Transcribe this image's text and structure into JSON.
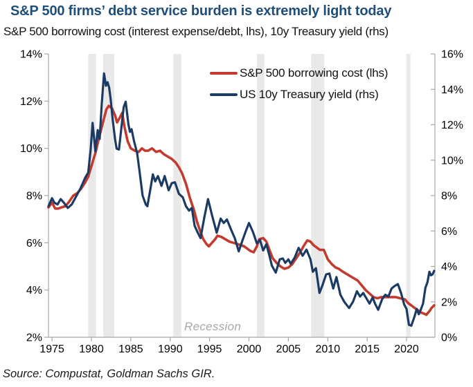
{
  "header": {
    "title": "S&P 500 firms’ debt service burden is extremely light today",
    "subtitle": "S&P 500 borrowing cost (interest expense/debt, lhs), 10y Treasury yield (rhs)"
  },
  "footer": {
    "source": "Source: Compustat, Goldman Sachs GIR."
  },
  "colors": {
    "title_blue": "#1F4E79",
    "borrowing_cost_red": "#C23B2E",
    "treasury_navy": "#1B3A64",
    "recession_band": "#E9E9E9",
    "axis_gray": "#A6A6A6",
    "recession_text_gray": "#A8A8A8",
    "tick_label": "#000000"
  },
  "legend": {
    "items": [
      {
        "label": "S&P 500 borrowing cost (lhs)",
        "color": "#C23B2E"
      },
      {
        "label": "US 10y Treasury yield (rhs)",
        "color": "#1B3A64"
      }
    ]
  },
  "plot": {
    "recession_label": "Recession"
  },
  "chart_data": {
    "type": "line",
    "title": "S&P 500 firms’ debt service burden is extremely light today",
    "subtitle": "S&P 500 borrowing cost (interest expense/debt, lhs), 10y Treasury yield (rhs)",
    "grid": false,
    "legend_position": "top-center-inside",
    "x_axis": {
      "min": 1974.55,
      "max": 2023.6,
      "ticks": [
        {
          "value": 1975,
          "label": "1975"
        },
        {
          "value": 1980,
          "label": "1980"
        },
        {
          "value": 1985,
          "label": "1985"
        },
        {
          "value": 1990,
          "label": "1990"
        },
        {
          "value": 1995,
          "label": "1995"
        },
        {
          "value": 2000,
          "label": "2000"
        },
        {
          "value": 2005,
          "label": "2005"
        },
        {
          "value": 2010,
          "label": "2010"
        },
        {
          "value": 2015,
          "label": "2015"
        },
        {
          "value": 2020,
          "label": "2020"
        }
      ]
    },
    "y_left": {
      "min": 2,
      "max": 14,
      "ticks": [
        {
          "value": 14,
          "label": "14%"
        },
        {
          "value": 12,
          "label": "12%"
        },
        {
          "value": 10,
          "label": "10%"
        },
        {
          "value": 8,
          "label": "8%"
        },
        {
          "value": 6,
          "label": "6%"
        },
        {
          "value": 4,
          "label": "4%"
        },
        {
          "value": 2,
          "label": "2%"
        }
      ]
    },
    "y_right": {
      "min": 0,
      "max": 16,
      "ticks": [
        {
          "value": 16,
          "label": "16%"
        },
        {
          "value": 14,
          "label": "14%"
        },
        {
          "value": 12,
          "label": "12%"
        },
        {
          "value": 10,
          "label": "10%"
        },
        {
          "value": 8,
          "label": "8%"
        },
        {
          "value": 6,
          "label": "6%"
        },
        {
          "value": 4,
          "label": "4%"
        },
        {
          "value": 2,
          "label": "2%"
        },
        {
          "value": 0,
          "label": "0%"
        }
      ]
    },
    "recessions": [
      [
        1979.6,
        1980.6
      ],
      [
        1981.5,
        1982.9
      ],
      [
        1990.4,
        1991.4
      ],
      [
        2001.0,
        2001.95
      ],
      [
        2007.9,
        2009.55
      ],
      [
        2019.95,
        2020.5
      ]
    ],
    "annotation": "Recession",
    "series": [
      {
        "name": "S&P 500 borrowing cost (lhs)",
        "axis": "left",
        "color": "#C23B2E",
        "stroke_width": 3.6,
        "points": [
          [
            1974.55,
            7.5
          ],
          [
            1975,
            7.7
          ],
          [
            1975.4,
            7.45
          ],
          [
            1975.8,
            7.45
          ],
          [
            1976.2,
            7.5
          ],
          [
            1976.7,
            7.55
          ],
          [
            1977.2,
            7.75
          ],
          [
            1977.7,
            8.0
          ],
          [
            1978.2,
            8.1
          ],
          [
            1978.7,
            8.3
          ],
          [
            1979.2,
            8.55
          ],
          [
            1979.6,
            8.8
          ],
          [
            1980,
            9.25
          ],
          [
            1980.5,
            9.8
          ],
          [
            1981,
            10.5
          ],
          [
            1981.5,
            11.15
          ],
          [
            1981.9,
            11.65
          ],
          [
            1982.2,
            11.8
          ],
          [
            1982.6,
            11.7
          ],
          [
            1983,
            11.4
          ],
          [
            1983.25,
            11.1
          ],
          [
            1983.6,
            11.3
          ],
          [
            1983.9,
            11.5
          ],
          [
            1984.2,
            10.9
          ],
          [
            1984.6,
            10.3
          ],
          [
            1985,
            10.0
          ],
          [
            1985.5,
            9.9
          ],
          [
            1986,
            9.85
          ],
          [
            1986.4,
            10.0
          ],
          [
            1986.8,
            9.9
          ],
          [
            1987.2,
            9.9
          ],
          [
            1987.7,
            10.0
          ],
          [
            1988.2,
            9.85
          ],
          [
            1988.7,
            9.9
          ],
          [
            1989.2,
            9.75
          ],
          [
            1989.7,
            9.65
          ],
          [
            1990.2,
            9.55
          ],
          [
            1990.7,
            9.4
          ],
          [
            1991.1,
            9.2
          ],
          [
            1991.5,
            8.95
          ],
          [
            1992,
            8.5
          ],
          [
            1992.5,
            7.9
          ],
          [
            1993,
            7.4
          ],
          [
            1993.4,
            6.9
          ],
          [
            1993.8,
            6.5
          ],
          [
            1994.2,
            6.15
          ],
          [
            1994.6,
            5.95
          ],
          [
            1994.9,
            5.85
          ],
          [
            1995.3,
            6.0
          ],
          [
            1995.7,
            6.15
          ],
          [
            1996,
            6.3
          ],
          [
            1996.5,
            6.25
          ],
          [
            1997,
            6.15
          ],
          [
            1997.5,
            6.05
          ],
          [
            1998,
            6.0
          ],
          [
            1998.5,
            5.95
          ],
          [
            1999,
            5.9
          ],
          [
            1999.4,
            5.85
          ],
          [
            1999.8,
            5.75
          ],
          [
            2000.2,
            5.65
          ],
          [
            2000.6,
            5.6
          ],
          [
            2001,
            5.85
          ],
          [
            2001.3,
            6.15
          ],
          [
            2001.8,
            6.2
          ],
          [
            2002.2,
            6.05
          ],
          [
            2002.6,
            5.7
          ],
          [
            2003,
            5.35
          ],
          [
            2003.5,
            5.15
          ],
          [
            2004,
            5.0
          ],
          [
            2004.5,
            4.9
          ],
          [
            2005,
            4.95
          ],
          [
            2005.5,
            5.1
          ],
          [
            2006,
            5.35
          ],
          [
            2006.5,
            5.6
          ],
          [
            2007,
            5.9
          ],
          [
            2007.4,
            6.1
          ],
          [
            2007.8,
            6.05
          ],
          [
            2008.2,
            5.9
          ],
          [
            2008.6,
            5.8
          ],
          [
            2009,
            5.7
          ],
          [
            2009.5,
            5.7
          ],
          [
            2010,
            5.3
          ],
          [
            2010.5,
            5.1
          ],
          [
            2011,
            4.95
          ],
          [
            2011.4,
            4.9
          ],
          [
            2011.8,
            4.8
          ],
          [
            2012.3,
            4.7
          ],
          [
            2012.8,
            4.6
          ],
          [
            2013.3,
            4.5
          ],
          [
            2013.8,
            4.4
          ],
          [
            2014.3,
            4.2
          ],
          [
            2014.8,
            4.0
          ],
          [
            2015.3,
            3.85
          ],
          [
            2015.8,
            3.7
          ],
          [
            2016.3,
            3.65
          ],
          [
            2016.8,
            3.7
          ],
          [
            2017.4,
            3.7
          ],
          [
            2018,
            3.7
          ],
          [
            2018.6,
            3.7
          ],
          [
            2019.2,
            3.65
          ],
          [
            2019.8,
            3.6
          ],
          [
            2020.2,
            3.45
          ],
          [
            2020.6,
            3.35
          ],
          [
            2021,
            3.25
          ],
          [
            2021.4,
            3.15
          ],
          [
            2021.8,
            3.05
          ],
          [
            2022.2,
            3.0
          ],
          [
            2022.5,
            2.95
          ],
          [
            2022.9,
            3.1
          ],
          [
            2023.2,
            3.25
          ],
          [
            2023.5,
            3.35
          ]
        ]
      },
      {
        "name": "US 10y Treasury yield (rhs)",
        "axis": "right",
        "color": "#1B3A64",
        "stroke_width": 3.2,
        "points": [
          [
            1974.55,
            7.4
          ],
          [
            1975,
            7.85
          ],
          [
            1975.3,
            7.6
          ],
          [
            1975.7,
            7.5
          ],
          [
            1976.1,
            7.8
          ],
          [
            1976.5,
            7.6
          ],
          [
            1977,
            7.3
          ],
          [
            1977.5,
            7.5
          ],
          [
            1978,
            7.9
          ],
          [
            1978.6,
            8.4
          ],
          [
            1979.2,
            9.0
          ],
          [
            1979.6,
            9.3
          ],
          [
            1979.9,
            10.6
          ],
          [
            1980.15,
            12.1
          ],
          [
            1980.5,
            10.5
          ],
          [
            1980.8,
            11.7
          ],
          [
            1981.05,
            11.2
          ],
          [
            1981.3,
            13.1
          ],
          [
            1981.6,
            14.9
          ],
          [
            1981.85,
            14.2
          ],
          [
            1982.05,
            14.4
          ],
          [
            1982.25,
            14.1
          ],
          [
            1982.45,
            13.4
          ],
          [
            1982.7,
            12.3
          ],
          [
            1983,
            11.2
          ],
          [
            1983.2,
            10.65
          ],
          [
            1983.5,
            10.6
          ],
          [
            1983.8,
            11.8
          ],
          [
            1984.1,
            13.0
          ],
          [
            1984.35,
            13.3
          ],
          [
            1984.7,
            12.0
          ],
          [
            1984.9,
            11.6
          ],
          [
            1985.1,
            11.75
          ],
          [
            1985.4,
            11.1
          ],
          [
            1985.8,
            10.4
          ],
          [
            1986.1,
            9.4
          ],
          [
            1986.5,
            8.0
          ],
          [
            1986.9,
            7.5
          ],
          [
            1987.1,
            7.4
          ],
          [
            1987.5,
            8.4
          ],
          [
            1987.8,
            9.2
          ],
          [
            1988.1,
            8.8
          ],
          [
            1988.45,
            9.1
          ],
          [
            1988.9,
            8.55
          ],
          [
            1989.3,
            9.1
          ],
          [
            1989.8,
            8.3
          ],
          [
            1990.2,
            8.7
          ],
          [
            1990.6,
            8.75
          ],
          [
            1991.1,
            8.1
          ],
          [
            1991.6,
            7.9
          ],
          [
            1992,
            7.4
          ],
          [
            1992.4,
            7.15
          ],
          [
            1992.75,
            7.3
          ],
          [
            1993.1,
            6.3
          ],
          [
            1993.5,
            5.9
          ],
          [
            1993.85,
            5.6
          ],
          [
            1994.3,
            6.7
          ],
          [
            1994.8,
            7.8
          ],
          [
            1995.3,
            6.9
          ],
          [
            1995.9,
            5.9
          ],
          [
            1996.4,
            6.7
          ],
          [
            1996.8,
            6.45
          ],
          [
            1997.2,
            6.65
          ],
          [
            1997.7,
            6.1
          ],
          [
            1998.2,
            5.6
          ],
          [
            1998.7,
            4.85
          ],
          [
            1999.2,
            5.5
          ],
          [
            1999.6,
            6.0
          ],
          [
            2000,
            6.45
          ],
          [
            2000.5,
            5.95
          ],
          [
            2001,
            5.3
          ],
          [
            2001.4,
            5.5
          ],
          [
            2001.8,
            4.9
          ],
          [
            2002.2,
            5.25
          ],
          [
            2002.6,
            4.6
          ],
          [
            2002.9,
            4.05
          ],
          [
            2003.4,
            3.65
          ],
          [
            2003.9,
            4.4
          ],
          [
            2004.3,
            4.45
          ],
          [
            2004.6,
            4.2
          ],
          [
            2005,
            4.4
          ],
          [
            2005.3,
            4.15
          ],
          [
            2005.8,
            4.5
          ],
          [
            2006.3,
            5.05
          ],
          [
            2006.8,
            4.6
          ],
          [
            2007.3,
            4.95
          ],
          [
            2007.8,
            4.4
          ],
          [
            2008.1,
            3.7
          ],
          [
            2008.5,
            3.9
          ],
          [
            2008.95,
            2.5
          ],
          [
            2009.3,
            2.9
          ],
          [
            2009.8,
            3.55
          ],
          [
            2010.2,
            3.6
          ],
          [
            2010.7,
            2.75
          ],
          [
            2011.1,
            3.4
          ],
          [
            2011.6,
            2.4
          ],
          [
            2012.1,
            2.0
          ],
          [
            2012.7,
            1.65
          ],
          [
            2013.2,
            2.0
          ],
          [
            2013.7,
            2.6
          ],
          [
            2014.1,
            2.3
          ],
          [
            2014.5,
            2.5
          ],
          [
            2014.9,
            2.2
          ],
          [
            2015.3,
            1.9
          ],
          [
            2015.7,
            2.25
          ],
          [
            2016,
            1.9
          ],
          [
            2016.4,
            1.55
          ],
          [
            2016.9,
            2.15
          ],
          [
            2017.3,
            2.4
          ],
          [
            2017.7,
            2.3
          ],
          [
            2018.1,
            2.75
          ],
          [
            2018.5,
            2.9
          ],
          [
            2018.9,
            3.0
          ],
          [
            2019.3,
            2.5
          ],
          [
            2019.7,
            1.85
          ],
          [
            2020,
            1.6
          ],
          [
            2020.3,
            0.7
          ],
          [
            2020.6,
            0.65
          ],
          [
            2021,
            1.15
          ],
          [
            2021.3,
            1.6
          ],
          [
            2021.55,
            1.3
          ],
          [
            2021.8,
            1.55
          ],
          [
            2022.1,
            1.9
          ],
          [
            2022.4,
            2.8
          ],
          [
            2022.65,
            3.1
          ],
          [
            2022.9,
            3.7
          ],
          [
            2023.1,
            3.5
          ],
          [
            2023.3,
            3.55
          ],
          [
            2023.5,
            3.75
          ]
        ]
      }
    ]
  }
}
